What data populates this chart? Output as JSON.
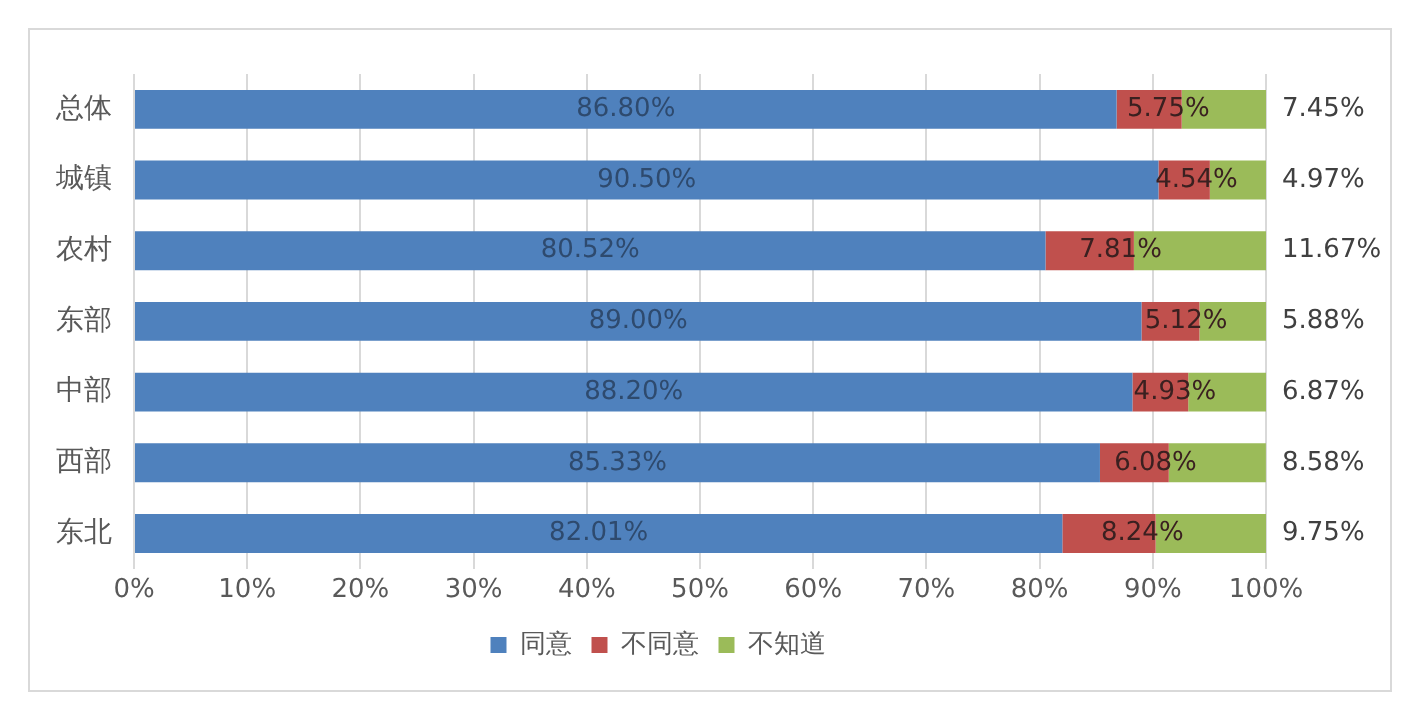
{
  "chart_data": {
    "type": "bar",
    "orientation": "horizontal",
    "stacked": true,
    "categories": [
      "总体",
      "城镇",
      "农村",
      "东部",
      "中部",
      "西部",
      "东北"
    ],
    "series": [
      {
        "name": "同意",
        "color": "#4f81bd",
        "values": [
          86.8,
          90.5,
          80.52,
          89.0,
          88.2,
          85.33,
          82.01
        ],
        "value_labels": [
          "86.80%",
          "90.50%",
          "80.52%",
          "89.00%",
          "88.20%",
          "85.33%",
          "82.01%"
        ]
      },
      {
        "name": "不同意",
        "color": "#c0504d",
        "values": [
          5.75,
          4.54,
          7.81,
          5.12,
          4.93,
          6.08,
          8.24
        ],
        "value_labels": [
          "5.75%",
          "4.54%",
          "7.81%",
          "5.12%",
          "4.93%",
          "6.08%",
          "8.24%"
        ]
      },
      {
        "name": "不知道",
        "color": "#9bbb59",
        "values": [
          7.45,
          4.97,
          11.67,
          5.88,
          6.87,
          8.58,
          9.75
        ],
        "value_labels": [
          "7.45%",
          "4.97%",
          "11.67%",
          "5.88%",
          "6.87%",
          "8.58%",
          "9.75%"
        ]
      }
    ],
    "xlim": [
      0,
      100
    ],
    "xticks": [
      {
        "value": 0,
        "label": "0%"
      },
      {
        "value": 10,
        "label": "10%"
      },
      {
        "value": 20,
        "label": "20%"
      },
      {
        "value": 30,
        "label": "30%"
      },
      {
        "value": 40,
        "label": "40%"
      },
      {
        "value": 50,
        "label": "50%"
      },
      {
        "value": 60,
        "label": "60%"
      },
      {
        "value": 70,
        "label": "70%"
      },
      {
        "value": 80,
        "label": "80%"
      },
      {
        "value": 90,
        "label": "90%"
      },
      {
        "value": 100,
        "label": "100%"
      }
    ],
    "grid": "x",
    "legend": "bottom"
  }
}
